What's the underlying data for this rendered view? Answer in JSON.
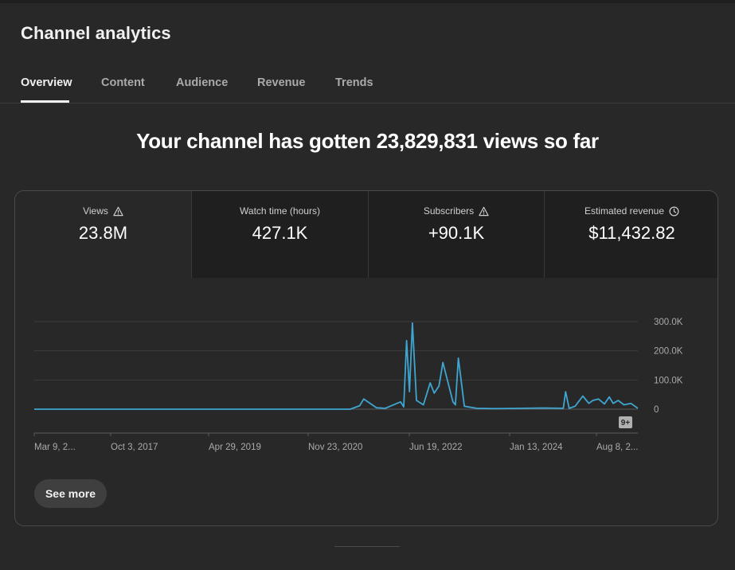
{
  "page": {
    "title": "Channel analytics"
  },
  "tabs": [
    {
      "label": "Overview",
      "active": true
    },
    {
      "label": "Content",
      "active": false
    },
    {
      "label": "Audience",
      "active": false
    },
    {
      "label": "Revenue",
      "active": false
    },
    {
      "label": "Trends",
      "active": false
    }
  ],
  "headline": "Your channel has gotten 23,829,831 views so far",
  "metrics": [
    {
      "label": "Views",
      "value": "23.8M",
      "icon": "warning-icon"
    },
    {
      "label": "Watch time (hours)",
      "value": "427.1K",
      "icon": ""
    },
    {
      "label": "Subscribers",
      "value": "+90.1K",
      "icon": "warning-icon"
    },
    {
      "label": "Estimated revenue",
      "value": "$11,432.82",
      "icon": "clock-icon"
    }
  ],
  "chart_data": {
    "type": "line",
    "yticks": [
      "300.0K",
      "200.0K",
      "100.0K",
      "0"
    ],
    "ylim": [
      0,
      300000
    ],
    "xticks": [
      "Mar 9, 2...",
      "Oct 3, 2017",
      "Apr 29, 2019",
      "Nov 23, 2020",
      "Jun 19, 2022",
      "Jan 13, 2024",
      "Aug 8, 2..."
    ],
    "x": [
      "2016-03-09",
      "2020-09-01",
      "2020-10-20",
      "2020-11-10",
      "2021-01-15",
      "2021-03-01",
      "2021-05-20",
      "2021-06-05",
      "2021-06-20",
      "2021-07-05",
      "2021-07-20",
      "2021-08-10",
      "2021-09-15",
      "2021-10-20",
      "2021-11-10",
      "2021-12-05",
      "2021-12-25",
      "2022-02-15",
      "2022-02-28",
      "2022-03-15",
      "2022-04-15",
      "2022-06-19",
      "2022-09-15",
      "2023-06-01",
      "2023-09-10",
      "2023-09-22",
      "2023-10-10",
      "2023-11-10",
      "2023-12-20",
      "2024-01-20",
      "2024-02-10",
      "2024-03-10",
      "2024-04-10",
      "2024-05-05",
      "2024-05-25",
      "2024-06-20",
      "2024-07-20",
      "2024-08-25",
      "2024-09-30"
    ],
    "y": [
      0,
      0,
      12000,
      35000,
      5000,
      3000,
      25000,
      8000,
      235000,
      60000,
      295000,
      30000,
      15000,
      90000,
      55000,
      80000,
      160000,
      25000,
      15000,
      175000,
      10000,
      3000,
      2000,
      4000,
      3000,
      60000,
      3000,
      10000,
      45000,
      20000,
      30000,
      35000,
      18000,
      42000,
      20000,
      30000,
      15000,
      20000,
      3000
    ],
    "notification_badge": "9+"
  },
  "see_more_label": "See more"
}
